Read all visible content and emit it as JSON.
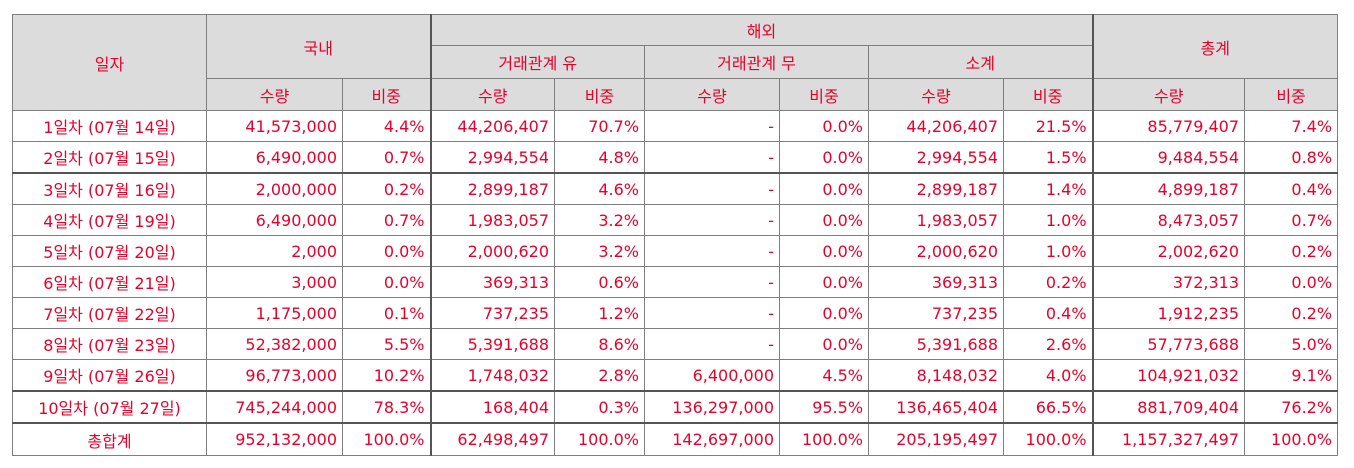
{
  "headers": {
    "date": "일자",
    "domestic": "국내",
    "overseas": "해외",
    "total": "총계",
    "with_relation": "거래관계 유",
    "without_relation": "거래관계 무",
    "subtotal": "소계",
    "qty": "수량",
    "ratio": "비중"
  },
  "rows": [
    {
      "date": "1일차 (07월 14일)",
      "dom_qty": "41,573,000",
      "dom_pct": "4.4%",
      "rel_qty": "44,206,407",
      "rel_pct": "70.7%",
      "norel_qty": "-",
      "norel_pct": "0.0%",
      "sub_qty": "44,206,407",
      "sub_pct": "21.5%",
      "tot_qty": "85,779,407",
      "tot_pct": "7.4%"
    },
    {
      "date": "2일차 (07월 15일)",
      "dom_qty": "6,490,000",
      "dom_pct": "0.7%",
      "rel_qty": "2,994,554",
      "rel_pct": "4.8%",
      "norel_qty": "-",
      "norel_pct": "0.0%",
      "sub_qty": "2,994,554",
      "sub_pct": "1.5%",
      "tot_qty": "9,484,554",
      "tot_pct": "0.8%"
    },
    {
      "date": "3일차 (07월 16일)",
      "dom_qty": "2,000,000",
      "dom_pct": "0.2%",
      "rel_qty": "2,899,187",
      "rel_pct": "4.6%",
      "norel_qty": "-",
      "norel_pct": "0.0%",
      "sub_qty": "2,899,187",
      "sub_pct": "1.4%",
      "tot_qty": "4,899,187",
      "tot_pct": "0.4%"
    },
    {
      "date": "4일차 (07월 19일)",
      "dom_qty": "6,490,000",
      "dom_pct": "0.7%",
      "rel_qty": "1,983,057",
      "rel_pct": "3.2%",
      "norel_qty": "-",
      "norel_pct": "0.0%",
      "sub_qty": "1,983,057",
      "sub_pct": "1.0%",
      "tot_qty": "8,473,057",
      "tot_pct": "0.7%"
    },
    {
      "date": "5일차 (07월 20일)",
      "dom_qty": "2,000",
      "dom_pct": "0.0%",
      "rel_qty": "2,000,620",
      "rel_pct": "3.2%",
      "norel_qty": "-",
      "norel_pct": "0.0%",
      "sub_qty": "2,000,620",
      "sub_pct": "1.0%",
      "tot_qty": "2,002,620",
      "tot_pct": "0.2%"
    },
    {
      "date": "6일차 (07월 21일)",
      "dom_qty": "3,000",
      "dom_pct": "0.0%",
      "rel_qty": "369,313",
      "rel_pct": "0.6%",
      "norel_qty": "-",
      "norel_pct": "0.0%",
      "sub_qty": "369,313",
      "sub_pct": "0.2%",
      "tot_qty": "372,313",
      "tot_pct": "0.0%"
    },
    {
      "date": "7일차 (07월 22일)",
      "dom_qty": "1,175,000",
      "dom_pct": "0.1%",
      "rel_qty": "737,235",
      "rel_pct": "1.2%",
      "norel_qty": "-",
      "norel_pct": "0.0%",
      "sub_qty": "737,235",
      "sub_pct": "0.4%",
      "tot_qty": "1,912,235",
      "tot_pct": "0.2%"
    },
    {
      "date": "8일차 (07월 23일)",
      "dom_qty": "52,382,000",
      "dom_pct": "5.5%",
      "rel_qty": "5,391,688",
      "rel_pct": "8.6%",
      "norel_qty": "-",
      "norel_pct": "0.0%",
      "sub_qty": "5,391,688",
      "sub_pct": "2.6%",
      "tot_qty": "57,773,688",
      "tot_pct": "5.0%"
    },
    {
      "date": "9일차 (07월 26일)",
      "dom_qty": "96,773,000",
      "dom_pct": "10.2%",
      "rel_qty": "1,748,032",
      "rel_pct": "2.8%",
      "norel_qty": "6,400,000",
      "norel_pct": "4.5%",
      "sub_qty": "8,148,032",
      "sub_pct": "4.0%",
      "tot_qty": "104,921,032",
      "tot_pct": "9.1%"
    },
    {
      "date": "10일차 (07월 27일)",
      "dom_qty": "745,244,000",
      "dom_pct": "78.3%",
      "rel_qty": "168,404",
      "rel_pct": "0.3%",
      "norel_qty": "136,297,000",
      "norel_pct": "95.5%",
      "sub_qty": "136,465,404",
      "sub_pct": "66.5%",
      "tot_qty": "881,709,404",
      "tot_pct": "76.2%"
    }
  ],
  "total_row": {
    "date": "총합계",
    "dom_qty": "952,132,000",
    "dom_pct": "100.0%",
    "rel_qty": "62,498,497",
    "rel_pct": "100.0%",
    "norel_qty": "142,697,000",
    "norel_pct": "100.0%",
    "sub_qty": "205,195,497",
    "sub_pct": "100.0%",
    "tot_qty": "1,157,327,497",
    "tot_pct": "100.0%"
  },
  "colors": {
    "text": "#e8002a",
    "header_bg": "#dcdcdc",
    "border": "#7f7f7f"
  }
}
